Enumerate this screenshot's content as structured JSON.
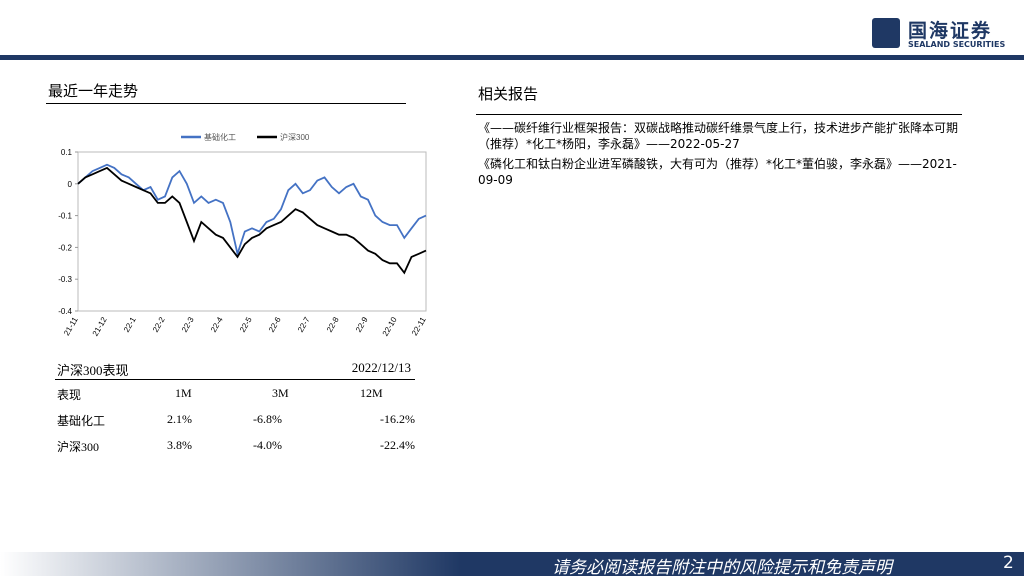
{
  "header": {
    "logo_cn": "国海证券",
    "logo_en": "SEALAND SECURITIES"
  },
  "trend": {
    "heading": "最近一年走势"
  },
  "chart_data": {
    "type": "line",
    "categories": [
      "21-11",
      null,
      null,
      null,
      "21-12",
      null,
      null,
      null,
      "22-1",
      null,
      null,
      null,
      "22-2",
      null,
      null,
      null,
      "22-3",
      null,
      null,
      null,
      "22-4",
      null,
      null,
      null,
      "22-5",
      null,
      null,
      null,
      "22-6",
      null,
      null,
      null,
      "22-7",
      null,
      null,
      null,
      "22-8",
      null,
      null,
      null,
      "22-9",
      null,
      null,
      null,
      "22-10",
      null,
      null,
      null,
      "22-11"
    ],
    "series": [
      {
        "name": "基础化工",
        "color": "#4472c4",
        "values": [
          0.0,
          0.02,
          0.04,
          0.05,
          0.06,
          0.05,
          0.03,
          0.02,
          0.0,
          -0.02,
          -0.01,
          -0.05,
          -0.04,
          0.02,
          0.04,
          0.0,
          -0.06,
          -0.04,
          -0.06,
          -0.05,
          -0.06,
          -0.12,
          -0.22,
          -0.15,
          -0.14,
          -0.15,
          -0.12,
          -0.11,
          -0.08,
          -0.02,
          0.0,
          -0.03,
          -0.02,
          0.01,
          0.02,
          -0.01,
          -0.03,
          -0.01,
          0.0,
          -0.04,
          -0.05,
          -0.1,
          -0.12,
          -0.13,
          -0.13,
          -0.17,
          -0.14,
          -0.11,
          -0.1
        ]
      },
      {
        "name": "沪深300",
        "color": "#000000",
        "values": [
          0.0,
          0.02,
          0.03,
          0.04,
          0.05,
          0.03,
          0.01,
          0.0,
          -0.01,
          -0.02,
          -0.03,
          -0.06,
          -0.06,
          -0.04,
          -0.06,
          -0.12,
          -0.18,
          -0.12,
          -0.14,
          -0.16,
          -0.17,
          -0.2,
          -0.23,
          -0.19,
          -0.17,
          -0.16,
          -0.14,
          -0.13,
          -0.12,
          -0.1,
          -0.08,
          -0.09,
          -0.11,
          -0.13,
          -0.14,
          -0.15,
          -0.16,
          -0.16,
          -0.17,
          -0.19,
          -0.21,
          -0.22,
          -0.24,
          -0.25,
          -0.25,
          -0.28,
          -0.23,
          -0.22,
          -0.21
        ]
      }
    ],
    "ylim": [
      -0.4,
      0.1
    ],
    "yticks": [
      0.1,
      0,
      -0.1,
      -0.2,
      -0.3,
      -0.4
    ]
  },
  "table": {
    "title": "沪深300表现",
    "date": "2022/12/13",
    "columns": [
      "表现",
      "1M",
      "3M",
      "12M"
    ],
    "rows": [
      [
        "基础化工",
        "2.1%",
        "-6.8%",
        "-16.2%"
      ],
      [
        "沪深300",
        "3.8%",
        "-4.0%",
        "-22.4%"
      ]
    ]
  },
  "reports": {
    "heading": "相关报告",
    "items": [
      "《——碳纤维行业框架报告：双碳战略推动碳纤维景气度上行，技术进步产能扩张降本可期（推荐）*化工*杨阳，李永磊》——2022-05-27",
      "《磷化工和钛白粉企业进军磷酸铁，大有可为（推荐）*化工*董伯骏，李永磊》——2021-09-09"
    ]
  },
  "footer": {
    "disclaimer": "请务必阅读报告附注中的风险提示和免责声明",
    "page": "2"
  }
}
